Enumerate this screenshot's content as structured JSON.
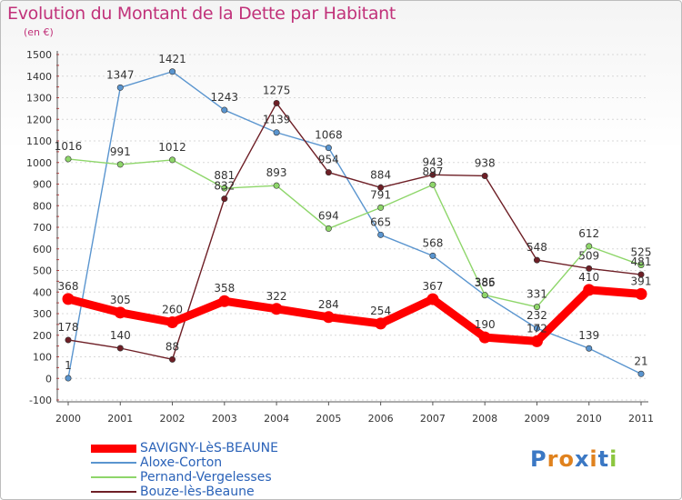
{
  "title": "Evolution du Montant de la Dette par Habitant",
  "subtitle": "(en €)",
  "logo": "Proxiti",
  "chart_data": {
    "type": "line",
    "title": "Evolution du Montant de la Dette par Habitant",
    "ylabel": "(en €)",
    "x": [
      "2000",
      "2001",
      "2002",
      "2003",
      "2004",
      "2005",
      "2006",
      "2007",
      "2008",
      "2009",
      "2010",
      "2011"
    ],
    "ylim": [
      -100,
      1500
    ],
    "yticks": [
      -100,
      0,
      100,
      200,
      300,
      400,
      500,
      600,
      700,
      800,
      900,
      1000,
      1100,
      1200,
      1300,
      1400,
      1500
    ],
    "grid": "horizontal-dashed",
    "legend": "bottom-left",
    "series": [
      {
        "name": "SAVIGNY-LèS-BEAUNE",
        "color": "#ff0000",
        "values": [
          368,
          305,
          260,
          358,
          322,
          284,
          254,
          367,
          190,
          172,
          410,
          391
        ]
      },
      {
        "name": "Aloxe-Corton",
        "color": "#5a95cf",
        "values": [
          1,
          1347,
          1421,
          1243,
          1139,
          1068,
          665,
          568,
          385,
          232,
          139,
          21
        ]
      },
      {
        "name": "Pernand-Vergelesses",
        "color": "#8ed66a",
        "values": [
          1016,
          991,
          1012,
          881,
          893,
          694,
          791,
          897,
          386,
          331,
          612,
          525
        ]
      },
      {
        "name": "Bouze-lès-Beaune",
        "color": "#6e1f26",
        "values": [
          178,
          140,
          88,
          832,
          1275,
          954,
          884,
          943,
          938,
          548,
          509,
          481
        ]
      }
    ],
    "point_labels": {
      "SAVIGNY-LèS-BEAUNE": [
        "368",
        "305",
        "260",
        "358",
        "322",
        "284",
        "254",
        "367",
        "190",
        "172",
        "410",
        "391"
      ],
      "Aloxe-Corton": [
        "1",
        "1347",
        "1421",
        "1243",
        "1139",
        "1068",
        "665",
        "568",
        "385",
        "232",
        "139",
        "21"
      ],
      "Pernand-Vergelesses": [
        "1016",
        "991",
        "1012",
        "881",
        "893",
        "694",
        "791",
        "897",
        "386",
        "331",
        "612",
        "525"
      ],
      "Bouze-lès-Beaune": [
        "178",
        "140",
        "88",
        "832",
        "1275",
        "954",
        "884",
        "943",
        "938",
        "548",
        "509",
        "481"
      ]
    }
  }
}
